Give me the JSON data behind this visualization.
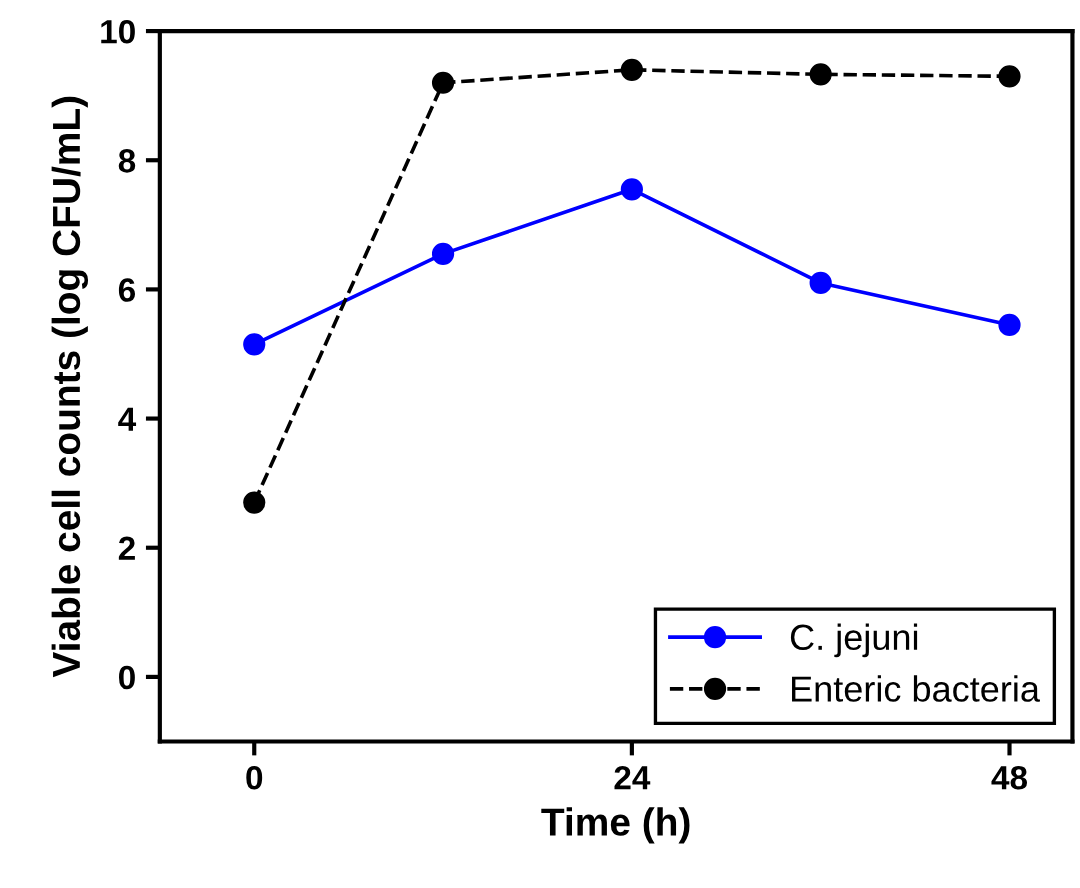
{
  "chart_data": {
    "type": "line",
    "xlabel": "Time (h)",
    "ylabel": "Viable cell counts (log CFU/mL)",
    "x": [
      0,
      12,
      24,
      36,
      48
    ],
    "series": [
      {
        "name": "C. jejuni",
        "color": "#0000ff",
        "values": [
          5.15,
          6.55,
          7.55,
          6.1,
          5.45
        ],
        "line_style": "solid"
      },
      {
        "name": "Enteric bacteria",
        "color": "#000000",
        "values": [
          2.7,
          9.2,
          9.4,
          9.33,
          9.3
        ],
        "line_style": "dashed"
      }
    ],
    "xlim": [
      -6,
      52
    ],
    "ylim": [
      -1,
      10
    ],
    "xticks": [
      0,
      24,
      48
    ],
    "yticks": [
      0,
      2,
      4,
      6,
      8,
      10
    ],
    "marker": "circle",
    "legend": "bottom right",
    "grid": false
  }
}
